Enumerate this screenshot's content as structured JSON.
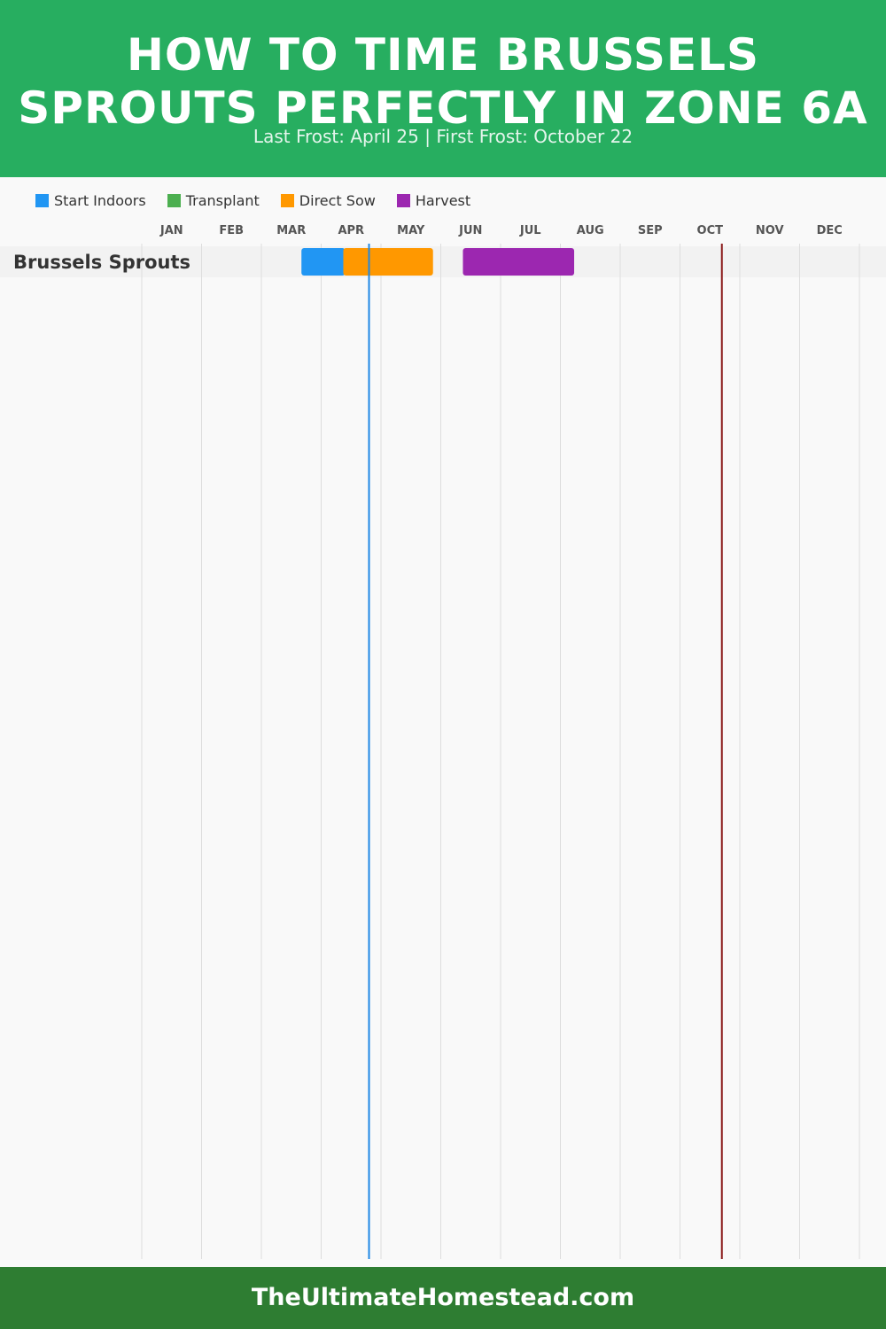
{
  "header": {
    "title": "HOW TO TIME BRUSSELS SPROUTS PERFECTLY IN ZONE 6A",
    "subtitle": "Last Frost: April 25 | First Frost: October 22"
  },
  "legend": [
    {
      "label": "Start Indoors",
      "color": "#2196f3"
    },
    {
      "label": "Transplant",
      "color": "#4caf50"
    },
    {
      "label": "Direct Sow",
      "color": "#ff9800"
    },
    {
      "label": "Harvest",
      "color": "#9c27b0"
    }
  ],
  "footer": {
    "text": "TheUltimateHomestead.com"
  },
  "chart_data": {
    "type": "gantt",
    "x_unit": "month of year (1 = Jan 1, 13 = Dec 31)",
    "xlim": [
      1,
      13
    ],
    "months": [
      "JAN",
      "FEB",
      "MAR",
      "APR",
      "MAY",
      "JUN",
      "JUL",
      "AUG",
      "SEP",
      "OCT",
      "NOV",
      "DEC"
    ],
    "rows": [
      {
        "label": "Brussels Sprouts",
        "bars": [
          {
            "phase": "Start Indoors",
            "start": 3.67,
            "end": 4.4,
            "color": "#2196f3"
          },
          {
            "phase": "Direct Sow",
            "start": 4.37,
            "end": 5.87,
            "color": "#ff9800"
          },
          {
            "phase": "Harvest",
            "start": 6.37,
            "end": 8.23,
            "color": "#9c27b0"
          }
        ]
      }
    ],
    "markers": [
      {
        "name": "Last Frost",
        "value": 4.8,
        "color": "#1e88e5"
      },
      {
        "name": "First Frost",
        "value": 10.7,
        "color": "#8b1a1a"
      }
    ]
  }
}
